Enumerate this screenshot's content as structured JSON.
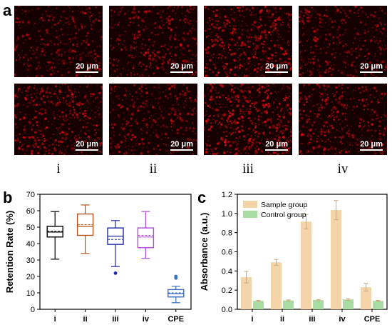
{
  "panel_a": {
    "letter": "a",
    "scale_label": "20 μm",
    "images": [
      {
        "row": 0,
        "col": 0,
        "density": 0.25
      },
      {
        "row": 0,
        "col": 1,
        "density": 0.35
      },
      {
        "row": 0,
        "col": 2,
        "density": 0.5
      },
      {
        "row": 0,
        "col": 3,
        "density": 0.3
      },
      {
        "row": 1,
        "col": 0,
        "density": 0.45
      },
      {
        "row": 1,
        "col": 1,
        "density": 0.3
      },
      {
        "row": 1,
        "col": 2,
        "density": 0.6
      },
      {
        "row": 1,
        "col": 3,
        "density": 0.4
      }
    ],
    "columns": [
      "i",
      "ii",
      "iii",
      "iv"
    ]
  },
  "chart_data": [
    {
      "panel": "b",
      "type": "box",
      "ylabel": "Retention Rate (%)",
      "ylim": [
        0,
        70
      ],
      "yticks": [
        0,
        10,
        20,
        30,
        40,
        50,
        60,
        70
      ],
      "categories": [
        "i",
        "ii",
        "iii",
        "iv",
        "CPE"
      ],
      "boxes": [
        {
          "cat": "i",
          "min": 30.5,
          "q1": 44,
          "median": 47,
          "mean": 47.5,
          "q3": 50.5,
          "max": 59.5,
          "outliers": [],
          "color": "#000000"
        },
        {
          "cat": "ii",
          "min": 34,
          "q1": 45,
          "median": 50.5,
          "mean": 51.5,
          "q3": 58,
          "max": 63.5,
          "outliers": [],
          "color": "#b5531c"
        },
        {
          "cat": "iii",
          "min": 26,
          "q1": 39.5,
          "median": 44.5,
          "mean": 42.5,
          "q3": 49.5,
          "max": 54,
          "outliers": [
            22
          ],
          "color": "#1e2aa8"
        },
        {
          "cat": "iv",
          "min": 31,
          "q1": 37.5,
          "median": 44,
          "mean": 45,
          "q3": 49.5,
          "max": 59.5,
          "outliers": [],
          "color": "#b04ce0"
        },
        {
          "cat": "CPE",
          "min": 4,
          "q1": 7.5,
          "median": 9.5,
          "mean": 10,
          "q3": 12,
          "max": 14,
          "outliers": [
            19,
            20
          ],
          "color": "#3a6fc4"
        }
      ]
    },
    {
      "panel": "c",
      "type": "bar",
      "ylabel": "Absorbance (a.u.)",
      "ylim": [
        0,
        1.2
      ],
      "yticks": [
        0.0,
        0.2,
        0.4,
        0.6,
        0.8,
        1.0,
        1.2
      ],
      "categories": [
        "i",
        "ii",
        "iii",
        "iv",
        "CPE"
      ],
      "legend": "top-left",
      "series": [
        {
          "name": "Sample group",
          "color": "#f2d4a8",
          "values": [
            0.335,
            0.49,
            0.915,
            1.035,
            0.23
          ],
          "errors": [
            0.06,
            0.03,
            0.075,
            0.1,
            0.04
          ]
        },
        {
          "name": "Control group",
          "color": "#a7dca3",
          "values": [
            0.088,
            0.092,
            0.096,
            0.102,
            0.088
          ],
          "errors": [
            0.006,
            0.006,
            0.006,
            0.008,
            0.006
          ]
        }
      ]
    }
  ]
}
